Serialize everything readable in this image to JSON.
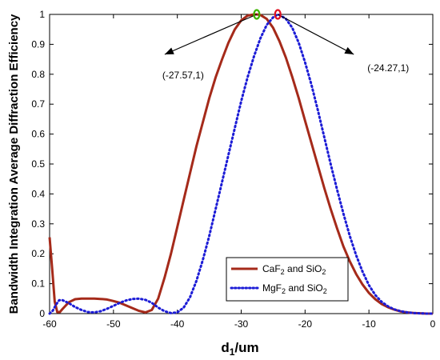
{
  "chart_data": {
    "type": "line",
    "xlabel": {
      "main": "d",
      "sub": "1",
      "tail": "/um"
    },
    "ylabel": "Bandwidth Integration Average Diffraction Efficiency",
    "xlim": [
      -60,
      0
    ],
    "ylim": [
      0,
      1
    ],
    "xticks": [
      -60,
      -50,
      -40,
      -30,
      -20,
      -10,
      0
    ],
    "yticks": [
      0,
      0.1,
      0.2,
      0.3,
      0.4,
      0.5,
      0.6,
      0.7,
      0.8,
      0.9,
      1
    ],
    "xtick_labels": [
      "-60",
      "-50",
      "-40",
      "-30",
      "-20",
      "-10",
      "0"
    ],
    "ytick_labels": [
      "0",
      "0.1",
      "0.2",
      "0.3",
      "0.4",
      "0.5",
      "0.6",
      "0.7",
      "0.8",
      "0.9",
      "1"
    ],
    "grid": false,
    "legend_position": "lower-right",
    "series": [
      {
        "name": "CaF2 and SiO2",
        "legend_parts": {
          "a": "CaF",
          "a_sub": "2",
          "b": " and SiO",
          "b_sub": "2"
        },
        "color": "#a52a1a",
        "style": "solid",
        "x": [
          -60,
          -59.6,
          -59.2,
          -58.8,
          -58.4,
          -58,
          -57,
          -56,
          -55,
          -54,
          -53,
          -52,
          -51,
          -50,
          -49,
          -48,
          -47,
          -46,
          -45,
          -44,
          -43,
          -42,
          -41,
          -40,
          -39,
          -38,
          -37,
          -36,
          -35,
          -34,
          -33,
          -32,
          -31,
          -30,
          -29,
          -28,
          -27.57,
          -27,
          -26,
          -25,
          -24,
          -23,
          -22,
          -21,
          -20,
          -19,
          -18,
          -17,
          -16,
          -15,
          -14,
          -13,
          -12,
          -11,
          -10,
          -9,
          -8,
          -7,
          -6,
          -5,
          -4,
          -3,
          -2,
          -1,
          0
        ],
        "y": [
          0.255,
          0.15,
          0.04,
          0.005,
          0.005,
          0.015,
          0.038,
          0.048,
          0.05,
          0.05,
          0.05,
          0.049,
          0.047,
          0.042,
          0.036,
          0.027,
          0.018,
          0.009,
          0.004,
          0.012,
          0.05,
          0.12,
          0.2,
          0.29,
          0.38,
          0.47,
          0.56,
          0.64,
          0.72,
          0.79,
          0.85,
          0.905,
          0.95,
          0.98,
          0.996,
          1.0,
          1.0,
          0.998,
          0.985,
          0.955,
          0.91,
          0.855,
          0.79,
          0.72,
          0.645,
          0.57,
          0.495,
          0.42,
          0.35,
          0.285,
          0.225,
          0.175,
          0.132,
          0.097,
          0.069,
          0.048,
          0.032,
          0.021,
          0.013,
          0.007,
          0.004,
          0.002,
          0.001,
          0.0,
          0.0
        ]
      },
      {
        "name": "MgF2 and SiO2",
        "legend_parts": {
          "a": "MgF",
          "a_sub": "2",
          "b": " and SiO",
          "b_sub": "2"
        },
        "color": "#1c1cd6",
        "style": "dotted",
        "x": [
          -60,
          -59.5,
          -59,
          -58.5,
          -58,
          -57,
          -56,
          -55,
          -54,
          -53,
          -52,
          -51,
          -50,
          -49,
          -48,
          -47,
          -46,
          -45,
          -44,
          -43,
          -42,
          -41,
          -40,
          -39,
          -38,
          -37,
          -36,
          -35,
          -34,
          -33,
          -32,
          -31,
          -30,
          -29,
          -28,
          -27,
          -26,
          -25,
          -24.27,
          -24,
          -23,
          -22,
          -21,
          -20,
          -19,
          -18,
          -17,
          -16,
          -15,
          -14,
          -13,
          -12,
          -11,
          -10,
          -9,
          -8,
          -7,
          -6,
          -5,
          -4,
          -3,
          -2,
          -1,
          0
        ],
        "y": [
          0.0,
          0.01,
          0.03,
          0.045,
          0.045,
          0.035,
          0.022,
          0.012,
          0.005,
          0.004,
          0.008,
          0.016,
          0.026,
          0.036,
          0.044,
          0.049,
          0.05,
          0.046,
          0.036,
          0.02,
          0.008,
          0.002,
          0.004,
          0.02,
          0.055,
          0.11,
          0.18,
          0.26,
          0.35,
          0.44,
          0.53,
          0.62,
          0.71,
          0.79,
          0.86,
          0.92,
          0.965,
          0.99,
          1.0,
          0.998,
          0.985,
          0.955,
          0.905,
          0.84,
          0.765,
          0.68,
          0.59,
          0.5,
          0.415,
          0.335,
          0.26,
          0.195,
          0.14,
          0.095,
          0.062,
          0.039,
          0.024,
          0.014,
          0.008,
          0.004,
          0.002,
          0.001,
          0.0,
          0.0
        ]
      }
    ],
    "annotations": [
      {
        "text": "(-27.57,1)",
        "x": -27.57,
        "y": 1,
        "marker_color": "#3cb400"
      },
      {
        "text": "(-24.27,1)",
        "x": -24.27,
        "y": 1,
        "marker_color": "#e01020"
      }
    ]
  }
}
